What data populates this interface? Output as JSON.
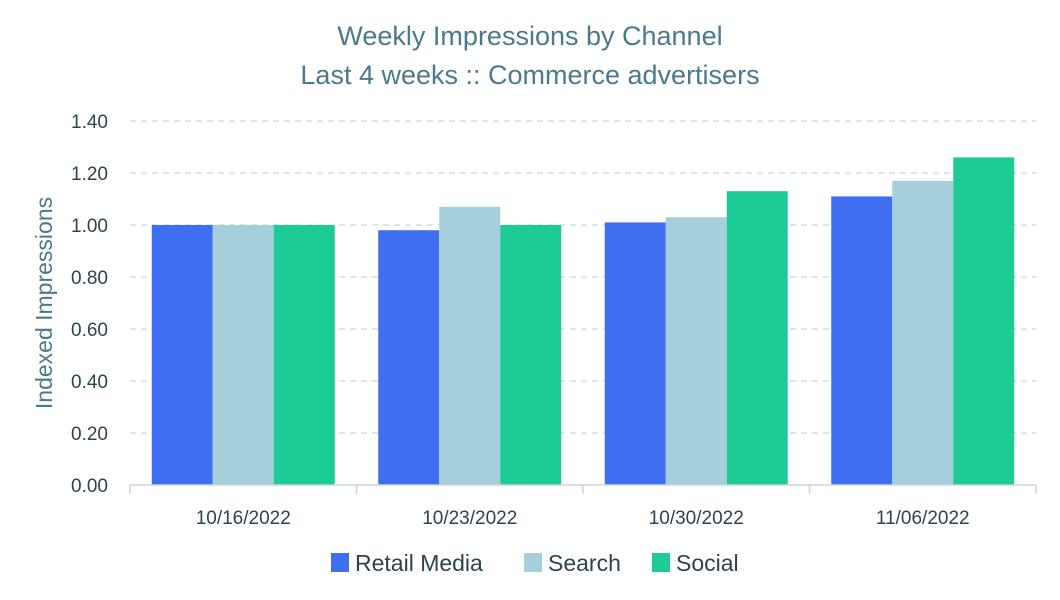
{
  "chart_data": {
    "type": "bar",
    "title": "Weekly Impressions by Channel",
    "subtitle": "Last 4 weeks :: Commerce advertisers",
    "xlabel": "",
    "ylabel": "Indexed Impressions",
    "categories": [
      "10/16/2022",
      "10/23/2022",
      "10/30/2022",
      "11/06/2022"
    ],
    "series": [
      {
        "name": "Retail Media",
        "color": "#3f6ff0",
        "values": [
          1.0,
          0.98,
          1.01,
          1.11
        ]
      },
      {
        "name": "Search",
        "color": "#a6cfdc",
        "values": [
          1.0,
          1.07,
          1.03,
          1.17
        ]
      },
      {
        "name": "Social",
        "color": "#1ccb96",
        "values": [
          1.0,
          1.0,
          1.13,
          1.26
        ]
      }
    ],
    "ylim": [
      0,
      1.4
    ],
    "yticks": [
      "0.00",
      "0.20",
      "0.40",
      "0.60",
      "0.80",
      "1.00",
      "1.20",
      "1.40"
    ],
    "grid": true,
    "legend_position": "bottom"
  }
}
